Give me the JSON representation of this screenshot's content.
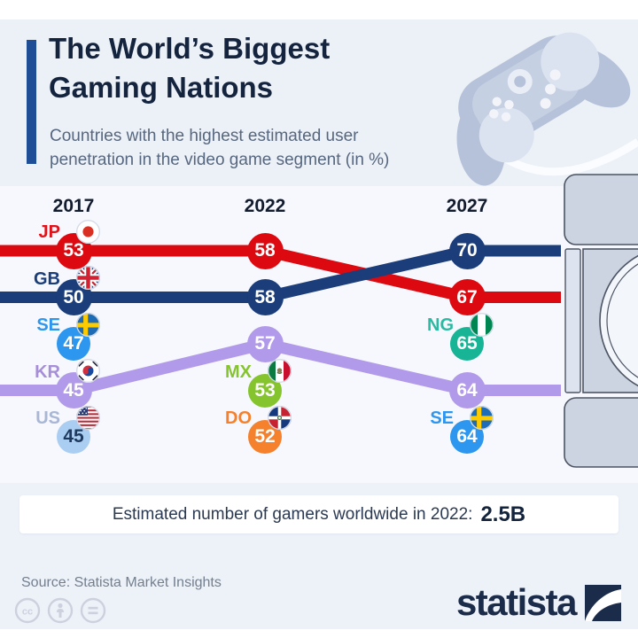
{
  "header": {
    "title": "The World’s Biggest\nGaming Nations",
    "subtitle": "Countries with the highest estimated user\npenetration in the video game segment (in %)",
    "accent_color": "#1d4e96"
  },
  "chart_data": {
    "type": "line",
    "title": "The World’s Biggest Gaming Nations",
    "subtitle": "Countries with the highest estimated user penetration in the video game segment (in %)",
    "unit": "%",
    "x_categories": [
      "2017",
      "2022",
      "2027"
    ],
    "layout_note": "bump-chart: nodes placed by rank per year, rank 1 at top; 2022/2027 line nodes unlabeled",
    "series": [
      {
        "name": "Japan (red line)",
        "color": "#dc0a10",
        "label_color": "#e0131b",
        "points": [
          {
            "year": "2017",
            "value": 53,
            "rank": 1,
            "country": "JP",
            "flag": "jp"
          },
          {
            "year": "2022",
            "value": 58,
            "rank": 1
          },
          {
            "year": "2027",
            "value": 67,
            "rank": 2
          }
        ]
      },
      {
        "name": "United Kingdom (navy line)",
        "color": "#1b3d7a",
        "label_color": "#1b3d7a",
        "points": [
          {
            "year": "2017",
            "value": 50,
            "rank": 2,
            "country": "GB",
            "flag": "gb"
          },
          {
            "year": "2022",
            "value": 58,
            "rank": 2
          },
          {
            "year": "2027",
            "value": 70,
            "rank": 1
          }
        ]
      },
      {
        "name": "South Korea (purple line)",
        "color": "#b29aea",
        "label_color": "#a78ed8",
        "points": [
          {
            "year": "2017",
            "value": 45,
            "rank": 4,
            "country": "KR",
            "flag": "kr"
          },
          {
            "year": "2022",
            "value": 57,
            "rank": 3
          },
          {
            "year": "2027",
            "value": 64,
            "rank": 4
          }
        ]
      }
    ],
    "points": [
      {
        "country": "SE",
        "flag": "se",
        "year": "2017",
        "value": 47,
        "rank": 3,
        "color": "#2d96ee",
        "label_color": "#2d96ee",
        "value_color": "#ffffff"
      },
      {
        "country": "US",
        "flag": "us",
        "year": "2017",
        "value": 45,
        "rank": 5,
        "color": "#aacdf2",
        "label_color": "#a9b6d4",
        "value_color": "#1d3a5e"
      },
      {
        "country": "MX",
        "flag": "mx",
        "year": "2022",
        "value": 53,
        "rank": 4,
        "color": "#86c42e",
        "label_color": "#86c42e",
        "value_color": "#ffffff"
      },
      {
        "country": "DO",
        "flag": "do",
        "year": "2022",
        "value": 52,
        "rank": 5,
        "color": "#f5812d",
        "label_color": "#f5812d",
        "value_color": "#ffffff"
      },
      {
        "country": "NG",
        "flag": "ng",
        "year": "2027",
        "value": 65,
        "rank": 3,
        "color": "#17b496",
        "label_color": "#2cb9a2",
        "value_color": "#ffffff"
      },
      {
        "country": "SE",
        "flag": "se",
        "year": "2027",
        "value": 64,
        "rank": 5,
        "color": "#2d96ee",
        "label_color": "#2d96ee",
        "value_color": "#ffffff"
      }
    ],
    "annotation": {
      "label": "Estimated number of gamers worldwide in 2022:",
      "value": "2.5B"
    }
  },
  "footer": {
    "source": "Source: Statista Market Insights",
    "brand_wordmark": "statista"
  }
}
